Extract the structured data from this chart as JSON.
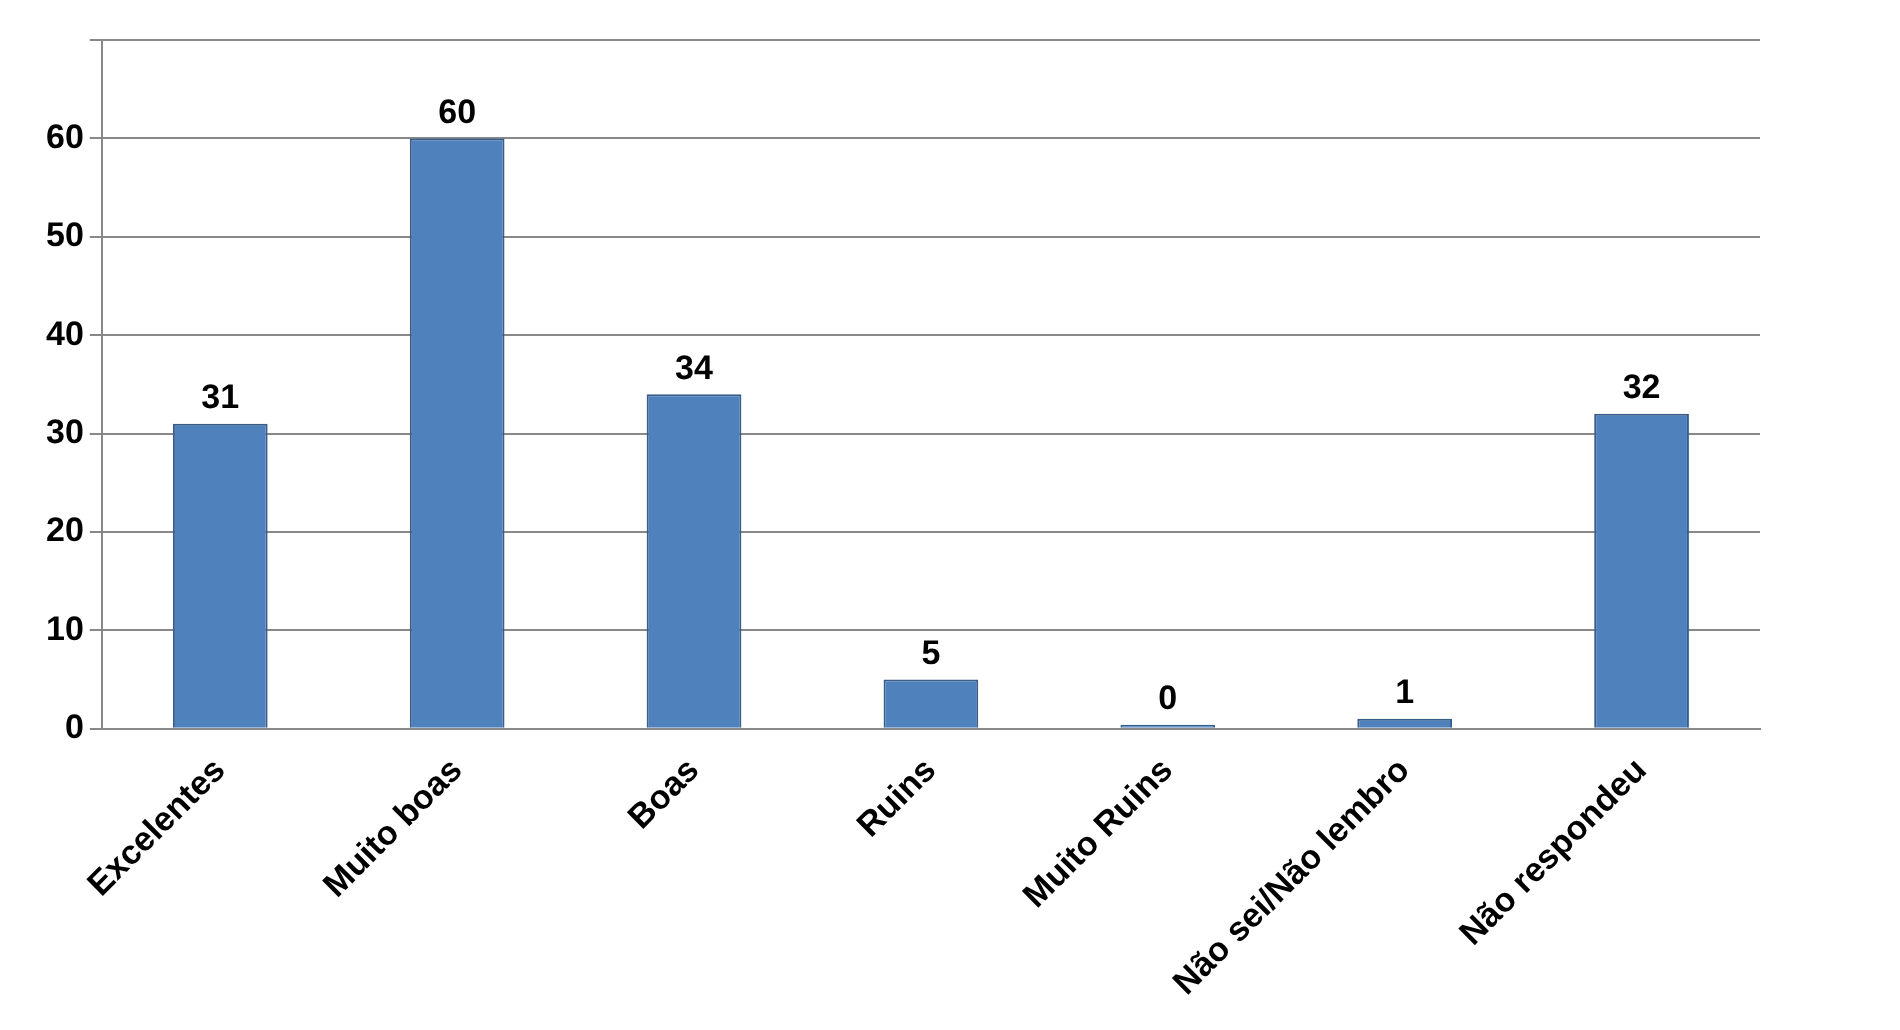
{
  "chart_data": {
    "type": "bar",
    "categories": [
      "Excelentes",
      "Muito boas",
      "Boas",
      "Ruins",
      "Muito Ruins",
      "Não sei/Não lembro",
      "Não respondeu"
    ],
    "values": [
      31,
      60,
      34,
      5,
      0,
      1,
      32
    ],
    "color": "#4f81bd",
    "ylim": [
      0,
      70
    ],
    "yticks": [
      0,
      10,
      20,
      30,
      40,
      50,
      60,
      {
        "value": 70,
        "label": null
      }
    ],
    "grid": "y",
    "data_labels": true
  }
}
